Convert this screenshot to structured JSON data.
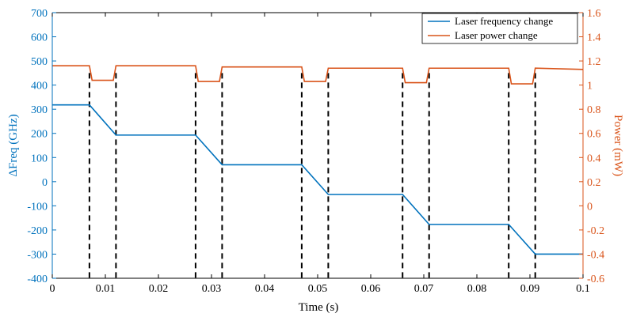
{
  "chart_data": {
    "type": "line",
    "xlabel": "Time (s)",
    "ylabel_left": "ΔFreq (GHz)",
    "ylabel_right": "Power (mW)",
    "xlim": [
      0,
      0.1
    ],
    "ylim_left": [
      -400,
      700
    ],
    "ylim_right": [
      -0.6,
      1.6
    ],
    "xticks": [
      "0",
      "0.01",
      "0.02",
      "0.03",
      "0.04",
      "0.05",
      "0.06",
      "0.07",
      "0.08",
      "0.09",
      "0.1"
    ],
    "yticks_left": [
      "700",
      "600",
      "500",
      "400",
      "300",
      "200",
      "100",
      "0",
      "-100",
      "-200",
      "-300",
      "-400"
    ],
    "yticks_right": [
      "1.6",
      "1.4",
      "1.2",
      "1",
      "0.8",
      "0.6",
      "0.4",
      "0.2",
      "0",
      "-0.2",
      "-0.4",
      "-0.6"
    ],
    "legend_position": "top-right",
    "colors": {
      "frequency": "#0072BD",
      "power": "#D95319",
      "markers": "#000000"
    },
    "series": [
      {
        "name": "Laser frequency change",
        "axis": "left",
        "x": [
          0,
          0.007,
          0.012,
          0.027,
          0.032,
          0.047,
          0.052,
          0.066,
          0.071,
          0.086,
          0.091,
          0.1
        ],
        "y": [
          318,
          318,
          193,
          193,
          70,
          70,
          -53,
          -53,
          -177,
          -177,
          -300,
          -300
        ]
      },
      {
        "name": "Laser power change",
        "axis": "right",
        "x": [
          0,
          0.007,
          0.0075,
          0.0115,
          0.012,
          0.027,
          0.0275,
          0.0315,
          0.032,
          0.047,
          0.0475,
          0.0515,
          0.052,
          0.066,
          0.0665,
          0.0705,
          0.071,
          0.086,
          0.0865,
          0.0905,
          0.091,
          0.1
        ],
        "y": [
          1.16,
          1.16,
          1.04,
          1.04,
          1.16,
          1.16,
          1.03,
          1.03,
          1.15,
          1.15,
          1.03,
          1.03,
          1.14,
          1.14,
          1.02,
          1.02,
          1.14,
          1.14,
          1.01,
          1.01,
          1.14,
          1.13
        ]
      }
    ],
    "marker_lines_x": [
      0.007,
      0.012,
      0.027,
      0.032,
      0.047,
      0.052,
      0.066,
      0.071,
      0.086,
      0.091
    ]
  }
}
